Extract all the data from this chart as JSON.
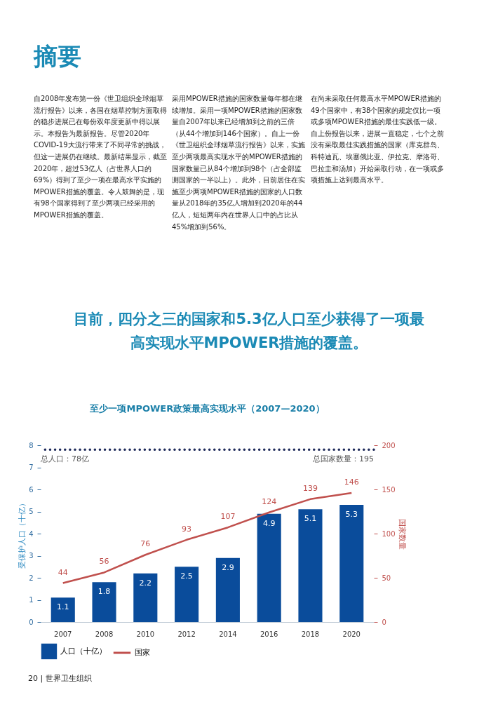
{
  "chart_data": {
    "type": "bar",
    "title": "至少一项MPOWER政策最高实现水平（2007—2020）",
    "annotations": [
      "摘要",
      "自2008年发布第一份《世卫组织全球烟草流行报告》以来，各国在烟草控制方面取得的稳步进展已在每份双年度更新中得以展示。本报告为最新报告。尽管2020年COVID-19大流行带来了不同寻常的挑战，但这一进展仍在继续。最新结果显示，截至2020年，超过53亿人（占世界人口的69%）得到了至少一项在最高水平实施的MPOWER措施的覆盖。令人鼓舞的是，现有98个国家得到了至少两项已经采用的MPOWER措施的覆盖。",
      "采用MPOWER措施的国家数量每年都在继续增加。采用一项MPOWER措施的国家数量自2007年以来已经增加到之前的三倍（从44个增加到146个国家）。自上一份《世卫组织全球烟草流行报告》以来，实施至少两项最高实现水平的MPOWER措施的国家数量已从84个增加到98个（占全部监测国家的一半以上）。此外，目前居住在实施至少两项MPOWER措施的国家的人口数量从2018年的35亿人增加到2020年的44亿人，短短两年内在世界人口中的占比从45%增加到56%。",
      "在尚未采取任何最高水平MPOWER措施的49个国家中，有38个国家的规定仅比一项或多项MPOWER措施的最佳实践低一级。自上份报告以来，进展一直稳定，七个之前没有采取最佳实践措施的国家（库克群岛、科特迪瓦、埃塞俄比亚、伊拉克、摩洛哥、巴拉圭和汤加）开始采取行动，在一项或多项措施上达到最高水平。",
      "目前，四分之三的国家和5.3亿人口至少获得了一项最高实现水平MPOWER措施的覆盖。",
      "20 | 世界卫生组织",
      "总国家数量：195"
    ],
    "categories": [
      "2007",
      "2008",
      "2010",
      "2012",
      "2014",
      "2016",
      "2018",
      "2020"
    ],
    "series": [
      {
        "name": "人口（十亿）",
        "color": "#0a4c9b",
        "values": [
          1.1,
          1.8,
          2.2,
          2.5,
          2.9,
          4.9,
          5.1,
          5.3
        ]
      },
      {
        "name": "国家",
        "type": "line",
        "axis": "y2",
        "color": "#c0504d",
        "values": [
          44,
          56,
          76,
          93,
          107,
          124,
          139,
          146
        ]
      }
    ],
    "ylabel": "受保护人口（十亿）",
    "y2label": "国家数量",
    "ylim": [
      0,
      8
    ],
    "yticks": [
      0,
      1,
      2,
      3,
      4,
      5,
      6,
      7,
      8
    ],
    "y2lim": [
      0,
      200
    ],
    "y2ticks": [
      0,
      50,
      100,
      150,
      200
    ],
    "ref_lines": [
      {
        "axis": "y",
        "value": 7.8,
        "label": "总人口：78亿",
        "color": "#1f2a5a",
        "line_style": "dotted"
      }
    ],
    "data_labels": true,
    "grid": false,
    "legend": "bottom"
  }
}
